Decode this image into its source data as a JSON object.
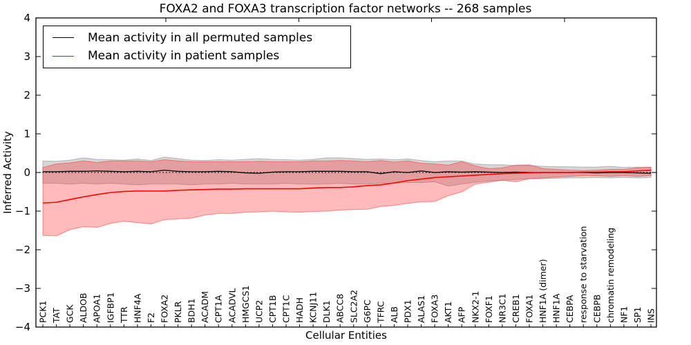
{
  "figure": {
    "title": "FOXA2 and FOXA3 transcription factor networks -- 268 samples",
    "xlabel": "Cellular Entities",
    "ylabel": "Inferred Activity"
  },
  "legend": {
    "entries": [
      {
        "label": "Mean activity in all permuted samples",
        "color": "#000000"
      },
      {
        "label": "Mean activity in patient samples",
        "color": "#ff0000"
      }
    ]
  },
  "colors": {
    "permuted_line": "#000000",
    "patient_line": "#ff0000",
    "permuted_band": "#808080",
    "patient_band": "#ff2a2a",
    "axis": "#000000"
  },
  "chart_data": {
    "type": "line",
    "title": "FOXA2 and FOXA3 transcription factor networks -- 268 samples",
    "xlabel": "Cellular Entities",
    "ylabel": "Inferred Activity",
    "ylim": [
      -4,
      4
    ],
    "yticks": [
      4,
      3,
      2,
      1,
      0,
      -1,
      -2,
      -3,
      -4
    ],
    "grid": false,
    "legend_position": "upper left",
    "zero_reference_line": 0,
    "categories": [
      "PCK1",
      "TAT",
      "GCK",
      "ALDOB",
      "APOA1",
      "IGFBP1",
      "TTR",
      "HNF4A",
      "F2",
      "FOXA2",
      "PKLR",
      "BDH1",
      "ACADM",
      "CPT1A",
      "ACADVL",
      "HMGCS1",
      "UCP2",
      "CPT1B",
      "CPT1C",
      "HADH",
      "KCNJ11",
      "DLK1",
      "ABCC8",
      "SLC2A2",
      "G6PC",
      "TFRC",
      "ALB",
      "PDX1",
      "ALAS1",
      "FOXA3",
      "AKT1",
      "AFP",
      "NKX2-1",
      "FOXF1",
      "NR3C1",
      "CREB1",
      "FOXA1",
      "HNF1A (dimer)",
      "HNF1A",
      "CEBPA",
      "response to starvation",
      "CEBPB",
      "chromatin remodeling",
      "NF1",
      "SP1",
      "INS"
    ],
    "series": [
      {
        "name": "Mean activity in all permuted samples",
        "role": "mean_line",
        "color": "#000000",
        "values": [
          0.02,
          0.02,
          0.03,
          0.03,
          0.04,
          0.03,
          0.02,
          0.03,
          0.02,
          0.06,
          0.03,
          0.02,
          0.02,
          0.03,
          0.02,
          -0.01,
          -0.02,
          0.01,
          0.02,
          0.02,
          0.03,
          0.03,
          0.03,
          0.02,
          0.02,
          -0.03,
          0.02,
          0.0,
          0.04,
          0.0,
          0.02,
          0.01,
          0.02,
          0.01,
          0.0,
          0.01,
          0.0,
          0.0,
          0.0,
          0.0,
          0.0,
          -0.01,
          0.0,
          0.0,
          -0.01,
          -0.02
        ]
      },
      {
        "name": "Permuted samples band",
        "role": "band",
        "color": "#808080",
        "upper": [
          0.3,
          0.29,
          0.32,
          0.38,
          0.34,
          0.33,
          0.32,
          0.35,
          0.31,
          0.4,
          0.36,
          0.32,
          0.31,
          0.33,
          0.32,
          0.34,
          0.36,
          0.34,
          0.33,
          0.32,
          0.34,
          0.38,
          0.38,
          0.36,
          0.34,
          0.35,
          0.33,
          0.35,
          0.31,
          0.28,
          0.3,
          0.3,
          0.22,
          0.2,
          0.2,
          0.18,
          0.18,
          0.16,
          0.15,
          0.15,
          0.14,
          0.14,
          0.16,
          0.13,
          0.14,
          0.13
        ],
        "lower": [
          -0.28,
          -0.28,
          -0.3,
          -0.28,
          -0.3,
          -0.28,
          -0.3,
          -0.32,
          -0.3,
          -0.3,
          -0.3,
          -0.32,
          -0.3,
          -0.3,
          -0.28,
          -0.3,
          -0.3,
          -0.3,
          -0.28,
          -0.3,
          -0.3,
          -0.3,
          -0.28,
          -0.3,
          -0.3,
          -0.28,
          -0.28,
          -0.26,
          -0.26,
          -0.24,
          -0.35,
          -0.3,
          -0.25,
          -0.22,
          -0.2,
          -0.18,
          -0.16,
          -0.16,
          -0.15,
          -0.14,
          -0.14,
          -0.13,
          -0.14,
          -0.13,
          -0.14,
          -0.13
        ]
      },
      {
        "name": "Mean activity in patient samples",
        "role": "mean_line",
        "color": "#ff0000",
        "values": [
          -0.79,
          -0.77,
          -0.7,
          -0.63,
          -0.57,
          -0.52,
          -0.49,
          -0.48,
          -0.48,
          -0.48,
          -0.46,
          -0.45,
          -0.44,
          -0.43,
          -0.43,
          -0.42,
          -0.42,
          -0.42,
          -0.42,
          -0.42,
          -0.4,
          -0.39,
          -0.39,
          -0.37,
          -0.34,
          -0.32,
          -0.27,
          -0.21,
          -0.17,
          -0.13,
          -0.11,
          -0.09,
          -0.07,
          -0.05,
          -0.03,
          -0.02,
          -0.01,
          0.0,
          0.0,
          0.0,
          0.01,
          0.01,
          0.02,
          0.02,
          0.04,
          0.06
        ]
      },
      {
        "name": "Patient samples band",
        "role": "band",
        "color": "#ff2a2a",
        "upper": [
          0.13,
          0.22,
          0.25,
          0.3,
          0.26,
          0.3,
          0.3,
          0.3,
          0.28,
          0.33,
          0.3,
          0.28,
          0.28,
          0.28,
          0.28,
          0.28,
          0.29,
          0.28,
          0.28,
          0.28,
          0.3,
          0.3,
          0.31,
          0.3,
          0.28,
          0.31,
          0.27,
          0.3,
          0.24,
          0.22,
          0.19,
          0.28,
          0.17,
          0.1,
          0.12,
          0.19,
          0.2,
          0.1,
          0.08,
          0.06,
          0.05,
          0.06,
          0.08,
          0.08,
          0.12,
          0.14
        ],
        "lower": [
          -1.63,
          -1.64,
          -1.48,
          -1.4,
          -1.42,
          -1.32,
          -1.26,
          -1.3,
          -1.33,
          -1.22,
          -1.2,
          -1.18,
          -1.1,
          -1.06,
          -1.06,
          -1.03,
          -1.02,
          -1.0,
          -1.02,
          -1.03,
          -1.01,
          -1.0,
          -0.97,
          -0.96,
          -0.95,
          -0.88,
          -0.85,
          -0.8,
          -0.76,
          -0.75,
          -0.6,
          -0.5,
          -0.3,
          -0.25,
          -0.2,
          -0.24,
          -0.16,
          -0.14,
          -0.12,
          -0.1,
          -0.08,
          -0.08,
          -0.1,
          -0.08,
          -0.1,
          -0.08
        ]
      }
    ]
  }
}
